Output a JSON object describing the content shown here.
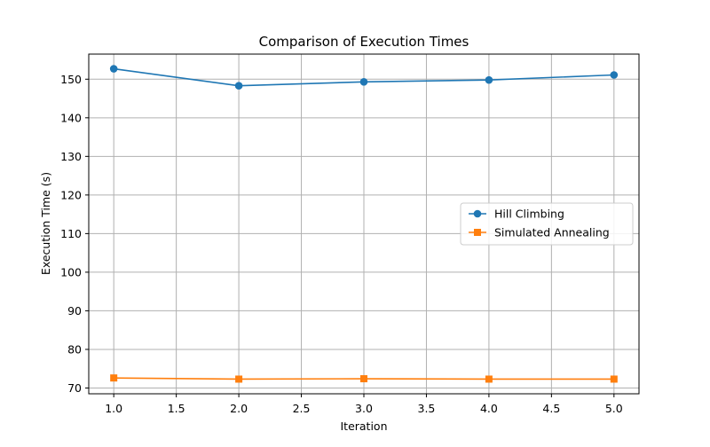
{
  "chart_data": {
    "type": "line",
    "title": "Comparison of Execution Times",
    "xlabel": "Iteration",
    "ylabel": "Execution Time (s)",
    "xlim": [
      0.8,
      5.2
    ],
    "ylim": [
      68.5,
      156.5
    ],
    "xticks": [
      1.0,
      1.5,
      2.0,
      2.5,
      3.0,
      3.5,
      4.0,
      4.5,
      5.0
    ],
    "xtick_labels": [
      "1.0",
      "1.5",
      "2.0",
      "2.5",
      "3.0",
      "3.5",
      "4.0",
      "4.5",
      "5.0"
    ],
    "yticks": [
      70,
      80,
      90,
      100,
      110,
      120,
      130,
      140,
      150
    ],
    "ytick_labels": [
      "70",
      "80",
      "90",
      "100",
      "110",
      "120",
      "130",
      "140",
      "150"
    ],
    "grid": true,
    "legend_position": "center-right",
    "series": [
      {
        "name": "Hill Climbing",
        "color": "#1f77b4",
        "marker": "circle",
        "x": [
          1,
          2,
          3,
          4,
          5
        ],
        "y": [
          152.7,
          148.3,
          149.3,
          149.8,
          151.1
        ]
      },
      {
        "name": "Simulated Annealing",
        "color": "#ff7f0e",
        "marker": "square",
        "x": [
          1,
          2,
          3,
          4,
          5
        ],
        "y": [
          72.6,
          72.3,
          72.4,
          72.3,
          72.3
        ]
      }
    ]
  }
}
